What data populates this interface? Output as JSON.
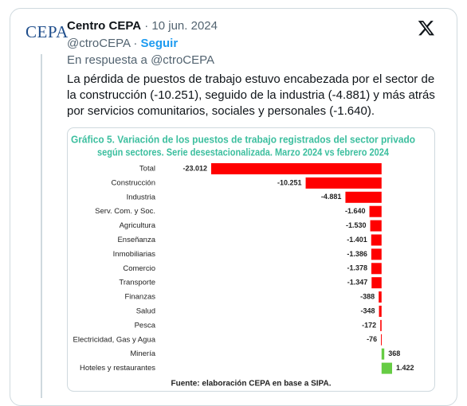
{
  "tweet": {
    "author_name": "Centro CEPA",
    "separator": "·",
    "date": "10 jun. 2024",
    "handle": "@ctroCEPA",
    "follow": "Seguir",
    "reply_to": "En respuesta a @ctroCEPA",
    "avatar_text": "CEPA",
    "body": "La pérdida de puestos de trabajo estuvo encabezada por el sector de la construcción (-10.251), seguido de la industria (-4.881) y más atrás por servicios comunitarios, sociales y personales (-1.640)."
  },
  "chart_data": {
    "type": "bar",
    "orientation": "horizontal",
    "title": [
      "Gráfico 5. Variación de los puestos de trabajo registrados del sector privado",
      "según sectores. Serie desestacionalizada. Marzo 2024 vs febrero 2024"
    ],
    "categories": [
      "Total",
      "Construcción",
      "Industria",
      "Serv. Com. y Soc.",
      "Agricultura",
      "Enseñanza",
      "Inmobiliarias",
      "Comercio",
      "Transporte",
      "Finanzas",
      "Salud",
      "Pesca",
      "Electricidad, Gas y Agua",
      "Minería",
      "Hoteles y restaurantes"
    ],
    "values": [
      -23012,
      -10251,
      -4881,
      -1640,
      -1530,
      -1401,
      -1386,
      -1378,
      -1347,
      -388,
      -348,
      -172,
      -76,
      368,
      1422
    ],
    "value_labels": [
      "-23.012",
      "-10.251",
      "-4.881",
      "-1.640",
      "-1.530",
      "-1.401",
      "-1.386",
      "-1.378",
      "-1.347",
      "-388",
      "-348",
      "-172",
      "-76",
      "368",
      "1.422"
    ],
    "color": "#ff0000",
    "positive_color": "#66cc44",
    "title_color": "#3dbf9f",
    "source": "Fuente: elaboración CEPA en base a SIPA."
  }
}
